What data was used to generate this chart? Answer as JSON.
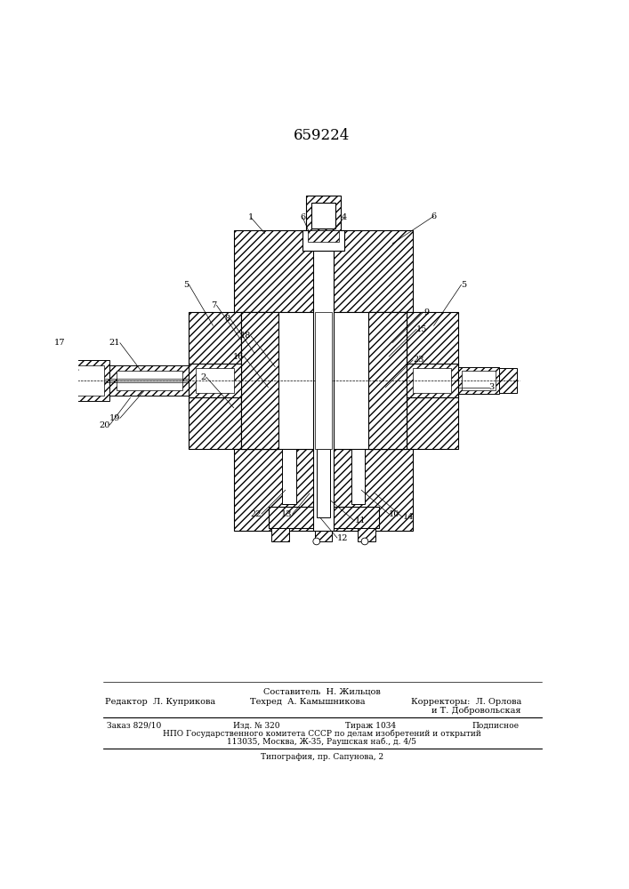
{
  "patent_number": "659224",
  "bg_color": "#ffffff",
  "footer": {
    "sostavitel": "Составитель  Н. Жильцов",
    "editor_label": "Редактор  Л. Куприкова",
    "tehred_label": "Техред  А. Камышникова",
    "korrektory_label": "Корректоры:  Л. Орлова",
    "korrektory2": "и Т. Добровольская",
    "zakaz": "Заказ 829/10",
    "izd": "Изд. № 320",
    "tirazh": "Тираж 1034",
    "podpisnoe": "Подписное",
    "npo": "НПО Государственного комитета СССР по делам изобретений и открытий",
    "address": "113035, Москва, Ж-35, Раушская наб., д. 4/5",
    "tipografia": "Типография, пр. Сапунова, 2"
  }
}
